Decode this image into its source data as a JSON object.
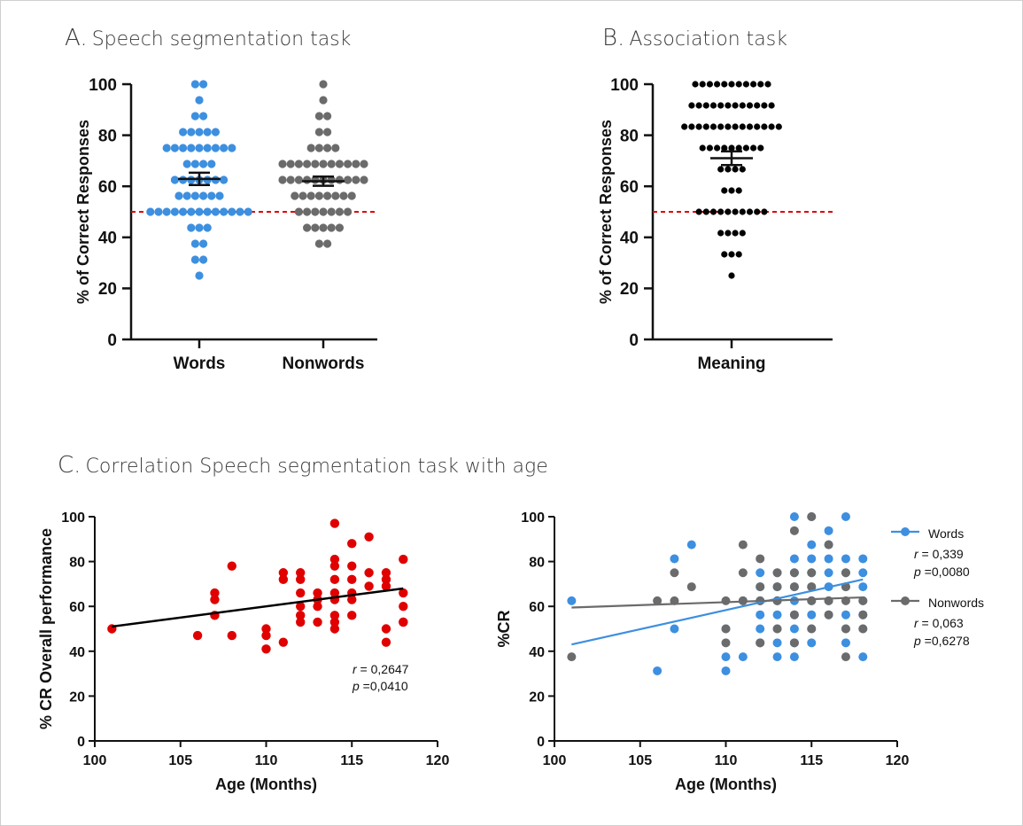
{
  "panel_titles": {
    "A": {
      "letter": "A.",
      "text": "Speech segmentation task"
    },
    "B": {
      "letter": "B.",
      "text": "Association task"
    },
    "C": {
      "letter": "C.",
      "text": "Correlation Speech segmentation task with age"
    }
  },
  "colors": {
    "words": "#3d8fe0",
    "nonwords": "#6b6b6b",
    "meaning": "#000000",
    "overall": "#e00000",
    "chance_line": "#e00000",
    "regression_overall": "#000000"
  },
  "chart_data": [
    {
      "id": "A",
      "type": "scatter",
      "title": "Speech segmentation task",
      "ylabel": "% of Correct Responses",
      "ylim": [
        0,
        100
      ],
      "yticks": [
        0,
        20,
        40,
        60,
        80,
        100
      ],
      "categories": [
        "Words",
        "Nonwords"
      ],
      "chance_level": 50,
      "series": [
        {
          "name": "Words",
          "mean": 62.9,
          "sem": 2.4,
          "values": [
            100,
            100,
            93.75,
            87.5,
            87.5,
            81.25,
            81.25,
            81.25,
            81.25,
            81.25,
            75,
            75,
            75,
            75,
            75,
            75,
            75,
            75,
            75,
            68.75,
            68.75,
            68.75,
            68.75,
            62.5,
            62.5,
            62.5,
            62.5,
            62.5,
            62.5,
            62.5,
            56.25,
            56.25,
            56.25,
            56.25,
            56.25,
            56.25,
            50,
            50,
            50,
            50,
            50,
            50,
            50,
            50,
            50,
            50,
            50,
            50,
            50,
            43.75,
            43.75,
            43.75,
            37.5,
            37.5,
            31.25,
            31.25,
            25
          ]
        },
        {
          "name": "Nonwords",
          "mean": 62.0,
          "sem": 1.8,
          "values": [
            100,
            93.75,
            87.5,
            87.5,
            81.25,
            81.25,
            75,
            75,
            75,
            75,
            68.75,
            68.75,
            68.75,
            68.75,
            68.75,
            68.75,
            68.75,
            68.75,
            68.75,
            68.75,
            68.75,
            62.5,
            62.5,
            62.5,
            62.5,
            62.5,
            62.5,
            62.5,
            62.5,
            62.5,
            62.5,
            62.5,
            56.25,
            56.25,
            56.25,
            56.25,
            56.25,
            56.25,
            56.25,
            56.25,
            50,
            50,
            50,
            50,
            50,
            50,
            50,
            43.75,
            43.75,
            43.75,
            43.75,
            43.75,
            37.5,
            37.5
          ]
        }
      ]
    },
    {
      "id": "B",
      "type": "scatter",
      "title": "Association task",
      "ylabel": "% of Correct Responses",
      "ylim": [
        0,
        100
      ],
      "yticks": [
        0,
        20,
        40,
        60,
        80,
        100
      ],
      "categories": [
        "Meaning"
      ],
      "chance_level": 50,
      "series": [
        {
          "name": "Meaning",
          "mean": 71.0,
          "sem": 2.7,
          "values": [
            100,
            100,
            100,
            100,
            100,
            100,
            100,
            100,
            100,
            100,
            100,
            91.67,
            91.67,
            91.67,
            91.67,
            91.67,
            91.67,
            91.67,
            91.67,
            91.67,
            91.67,
            91.67,
            91.67,
            83.33,
            83.33,
            83.33,
            83.33,
            83.33,
            83.33,
            83.33,
            83.33,
            83.33,
            83.33,
            83.33,
            83.33,
            83.33,
            83.33,
            75,
            75,
            75,
            75,
            75,
            75,
            75,
            75,
            75,
            66.67,
            66.67,
            66.67,
            66.67,
            58.33,
            58.33,
            58.33,
            50,
            50,
            50,
            50,
            50,
            50,
            50,
            50,
            50,
            50,
            41.67,
            41.67,
            41.67,
            41.67,
            33.33,
            33.33,
            33.33,
            25
          ]
        }
      ]
    },
    {
      "id": "C1",
      "type": "scatter",
      "xlabel": "Age (Months)",
      "ylabel": "%  CR Overall performance",
      "xlim": [
        100,
        120
      ],
      "ylim": [
        0,
        100
      ],
      "xticks": [
        100,
        105,
        110,
        115,
        120
      ],
      "yticks": [
        0,
        20,
        40,
        60,
        80,
        100
      ],
      "stats": {
        "r_label": "r",
        "r_value": " = 0,2647",
        "p_label": "p",
        "p_value": " =0,0410"
      },
      "series": [
        {
          "name": "overall",
          "x": [
            101,
            106,
            107,
            107,
            107,
            108,
            108,
            110,
            110,
            110,
            111,
            111,
            111,
            112,
            112,
            112,
            112,
            112,
            112,
            113,
            113,
            113,
            113,
            114,
            114,
            114,
            114,
            114,
            114,
            114,
            114,
            114,
            115,
            115,
            115,
            115,
            115,
            115,
            116,
            116,
            116,
            117,
            117,
            117,
            117,
            117,
            118,
            118,
            118,
            118,
            118
          ],
          "y": [
            50,
            47,
            66,
            63,
            56,
            78,
            47,
            50,
            47,
            41,
            75,
            72,
            44,
            75,
            72,
            66,
            60,
            56,
            53,
            66,
            63,
            60,
            53,
            97,
            81,
            78,
            72,
            66,
            63,
            56,
            53,
            50,
            88,
            78,
            72,
            66,
            63,
            56,
            91,
            75,
            69,
            75,
            72,
            69,
            50,
            44,
            81,
            66,
            60,
            53,
            53
          ],
          "fit": {
            "x": [
              101,
              118
            ],
            "y": [
              51,
              68
            ]
          }
        }
      ]
    },
    {
      "id": "C2",
      "type": "scatter",
      "xlabel": "Age (Months)",
      "ylabel": "%CR",
      "xlim": [
        100,
        120
      ],
      "ylim": [
        0,
        100
      ],
      "xticks": [
        100,
        105,
        110,
        115,
        120
      ],
      "yticks": [
        0,
        20,
        40,
        60,
        80,
        100
      ],
      "legend_position": "right",
      "series": [
        {
          "name": "Words",
          "x": [
            101,
            106,
            107,
            107,
            108,
            110,
            110,
            110,
            111,
            111,
            112,
            112,
            112,
            112,
            112,
            112,
            113,
            113,
            113,
            113,
            113,
            113,
            113,
            114,
            114,
            114,
            114,
            114,
            114,
            114,
            114,
            114,
            115,
            115,
            115,
            115,
            115,
            115,
            115,
            115,
            115,
            116,
            116,
            116,
            116,
            116,
            116,
            116,
            117,
            117,
            117,
            117,
            117,
            117,
            117,
            118,
            118,
            118,
            118,
            118,
            118,
            118
          ],
          "y": [
            62.5,
            31.25,
            81.25,
            50,
            87.5,
            50,
            37.5,
            31.25,
            62.5,
            37.5,
            75,
            68.75,
            62.5,
            56.25,
            50,
            43.75,
            75,
            68.75,
            62.5,
            56.25,
            50,
            43.75,
            37.5,
            100,
            81.25,
            75,
            68.75,
            62.5,
            56.25,
            50,
            43.75,
            37.5,
            100,
            87.5,
            81.25,
            75,
            68.75,
            62.5,
            56.25,
            50,
            43.75,
            93.75,
            87.5,
            81.25,
            75,
            68.75,
            62.5,
            56.25,
            100,
            81.25,
            75,
            68.75,
            56.25,
            50,
            43.75,
            81.25,
            75,
            68.75,
            62.5,
            56.25,
            50,
            37.5
          ],
          "fit": {
            "x": [
              101,
              118
            ],
            "y": [
              43,
              72
            ]
          },
          "stats": {
            "r_label": "r",
            "r_value": " = 0,339",
            "p_label": "p",
            "p_value": " =0,0080"
          }
        },
        {
          "name": "Nonwords",
          "x": [
            101,
            106,
            107,
            107,
            108,
            110,
            110,
            110,
            111,
            111,
            111,
            112,
            112,
            112,
            112,
            113,
            113,
            113,
            113,
            114,
            114,
            114,
            114,
            114,
            115,
            115,
            115,
            115,
            115,
            116,
            116,
            116,
            117,
            117,
            117,
            117,
            117,
            118,
            118,
            118
          ],
          "y": [
            37.5,
            62.5,
            75,
            62.5,
            68.75,
            62.5,
            50,
            43.75,
            87.5,
            75,
            62.5,
            81.25,
            68.75,
            62.5,
            43.75,
            75,
            68.75,
            62.5,
            50,
            93.75,
            75,
            68.75,
            56.25,
            43.75,
            100,
            75,
            68.75,
            62.5,
            50,
            87.5,
            62.5,
            56.25,
            75,
            68.75,
            62.5,
            50,
            37.5,
            62.5,
            56.25,
            50
          ],
          "fit": {
            "x": [
              101,
              118
            ],
            "y": [
              59.5,
              64
            ]
          },
          "stats": {
            "r_label": "r",
            "r_value": " = 0,063",
            "p_label": "p",
            "p_value": " =0,6278"
          }
        }
      ]
    }
  ]
}
